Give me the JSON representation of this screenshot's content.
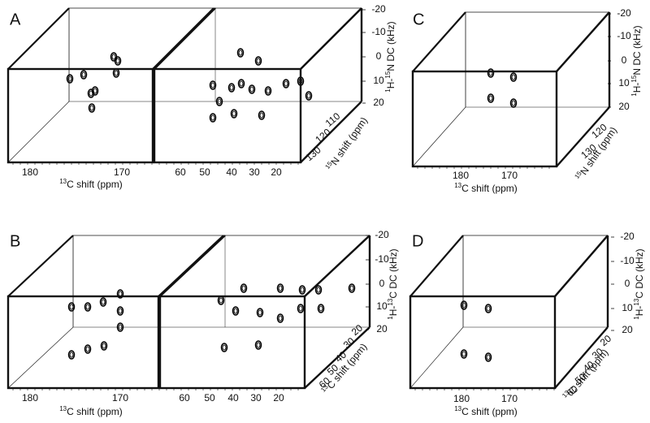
{
  "panels": [
    {
      "letter": "A",
      "x_label": {
        "sup": "13",
        "text": "C shift (ppm)"
      },
      "x_ticks": [
        "180",
        "170",
        "60",
        "50",
        "40",
        "30",
        "20"
      ],
      "depth_label": {
        "sup": "15",
        "text": "N shift (ppm)"
      },
      "depth_ticks": [
        "110",
        "120",
        "130"
      ],
      "z_label": {
        "sup1": "1",
        "mid": "H-",
        "sup2": "15",
        "text": "N DC (kHz)"
      },
      "z_ticks": [
        "-20",
        "-10",
        "0",
        "10",
        "20"
      ]
    },
    {
      "letter": "C",
      "x_label": {
        "sup": "13",
        "text": "C shift (ppm)"
      },
      "x_ticks": [
        "180",
        "170"
      ],
      "depth_label": {
        "sup": "15",
        "text": "N shift (ppm)"
      },
      "depth_ticks": [
        "120",
        "130"
      ],
      "z_label": {
        "sup1": "1",
        "mid": "H-",
        "sup2": "15",
        "text": "N DC (kHz)"
      },
      "z_ticks": [
        "-20",
        "-10",
        "0",
        "10",
        "20"
      ]
    },
    {
      "letter": "B",
      "x_label": {
        "sup": "13",
        "text": "C shift (ppm)"
      },
      "x_ticks": [
        "180",
        "170",
        "60",
        "50",
        "40",
        "30",
        "20"
      ],
      "depth_label": {
        "sup": "13",
        "text": "C shift (ppm)"
      },
      "depth_ticks": [
        "20",
        "30",
        "40",
        "50",
        "60"
      ],
      "z_label": {
        "sup1": "1",
        "mid": "H-",
        "sup2": "13",
        "text": "C DC (kHz)"
      },
      "z_ticks": [
        "-20",
        "-10",
        "0",
        "10",
        "20"
      ]
    },
    {
      "letter": "D",
      "x_label": {
        "sup": "13",
        "text": "C shift (ppm)"
      },
      "x_ticks": [
        "180",
        "170"
      ],
      "depth_label": {
        "sup": "13",
        "text": "C shift (ppm)"
      },
      "depth_ticks": [
        "20",
        "30",
        "40",
        "50",
        "60"
      ],
      "z_label": {
        "sup1": "1",
        "mid": "H-",
        "sup2": "13",
        "text": "C DC (kHz)"
      },
      "z_ticks": [
        "-20",
        "-10",
        "0",
        "10",
        "20"
      ]
    }
  ]
}
